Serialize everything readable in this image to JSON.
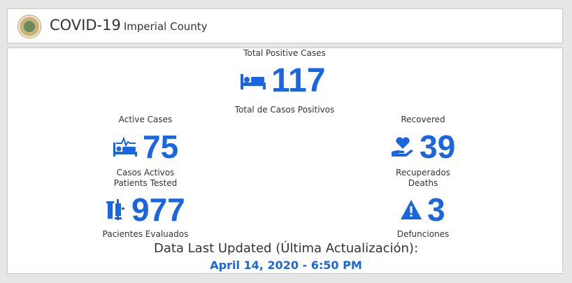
{
  "header": {
    "title": "COVID-19",
    "subtitle": "Imperial County"
  },
  "accent": "#1a66e0",
  "total": {
    "label": "Total Positive Cases",
    "value": "117",
    "label_es": "Total de Casos Positivos",
    "icon": "hospital-bed-icon"
  },
  "active": {
    "label": "Active Cases",
    "value": "75",
    "label_es": "Casos Activos",
    "icon": "bed-pulse-icon"
  },
  "recovered": {
    "label": "Recovered",
    "value": "39",
    "label_es": "Recuperados",
    "icon": "hand-heart-icon"
  },
  "tested": {
    "label": "Patients Tested",
    "value": "977",
    "label_es": "Pacientes Evaluados",
    "icon": "test-tubes-icon"
  },
  "deaths": {
    "label": "Deaths",
    "value": "3",
    "label_es": "Defunciones",
    "icon": "warning-icon"
  },
  "footer": {
    "label": "Data Last Updated (Última Actualización):",
    "date": "April 14, 2020 - 6:50 PM"
  }
}
